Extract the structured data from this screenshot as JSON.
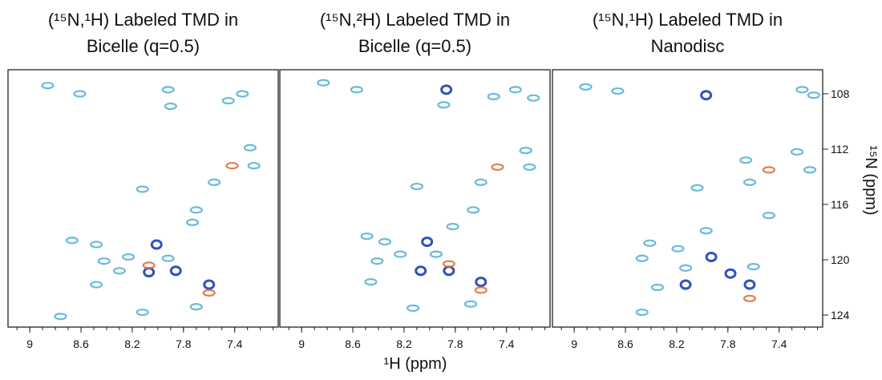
{
  "chart_data": [
    {
      "type": "scatter",
      "title": [
        "(¹⁵N,¹H) Labeled TMD in",
        "Bicelle (q=0.5)"
      ],
      "xlim": [
        9.17,
        7.06
      ],
      "ylim": [
        106.26,
        124.87
      ],
      "xticks": [
        9.0,
        8.6,
        8.2,
        7.8,
        7.4
      ],
      "series": [
        {
          "color": "#5ab4d6",
          "x": [
            8.86,
            8.61,
            7.92,
            7.9,
            7.34,
            7.45,
            7.28,
            7.25,
            7.56,
            8.12,
            7.7,
            7.73,
            8.67,
            8.48,
            8.42,
            8.23,
            7.92,
            8.3,
            8.48,
            7.7,
            8.12,
            8.76
          ],
          "values": [
            107.4,
            108.0,
            107.7,
            108.9,
            108.0,
            108.5,
            111.9,
            113.2,
            114.4,
            114.9,
            116.4,
            117.3,
            118.6,
            118.9,
            120.1,
            119.8,
            119.9,
            120.8,
            121.8,
            123.4,
            123.8,
            124.1
          ]
        },
        {
          "color": "#1c3fb5",
          "x": [
            8.01,
            8.07,
            7.86,
            7.6
          ],
          "values": [
            118.9,
            120.9,
            120.8,
            121.8
          ]
        },
        {
          "color": "#e0703a",
          "x": [
            7.42,
            7.6,
            8.07
          ],
          "values": [
            113.2,
            122.4,
            120.4
          ]
        }
      ]
    },
    {
      "type": "scatter",
      "title": [
        "(¹⁵N,²H) Labeled TMD in",
        "Bicelle (q=0.5)"
      ],
      "xlim": [
        9.17,
        7.06
      ],
      "ylim": [
        106.26,
        124.87
      ],
      "xticks": [
        9.0,
        8.6,
        8.2,
        7.8,
        7.4
      ],
      "series": [
        {
          "color": "#5ab4d6",
          "x": [
            8.83,
            8.57,
            7.89,
            7.5,
            7.33,
            7.19,
            7.25,
            7.22,
            7.6,
            8.1,
            7.66,
            7.82,
            8.49,
            8.35,
            8.23,
            7.95,
            8.41,
            8.46,
            7.68,
            8.13
          ],
          "values": [
            107.2,
            107.7,
            108.8,
            108.2,
            107.7,
            108.3,
            112.1,
            113.3,
            114.4,
            114.7,
            116.4,
            117.6,
            118.3,
            118.7,
            119.6,
            119.6,
            120.1,
            121.6,
            123.2,
            123.5
          ]
        },
        {
          "color": "#1c3fb5",
          "x": [
            7.87,
            8.02,
            8.07,
            7.85,
            7.6
          ],
          "values": [
            107.7,
            118.7,
            120.8,
            120.8,
            121.6
          ]
        },
        {
          "color": "#e0703a",
          "x": [
            7.47,
            7.6,
            7.85
          ],
          "values": [
            113.3,
            122.2,
            120.3
          ]
        }
      ]
    },
    {
      "type": "scatter",
      "title": [
        "(¹⁵N,¹H) Labeled TMD in",
        "Nanodisc"
      ],
      "xlim": [
        9.17,
        7.06
      ],
      "ylim": [
        106.26,
        124.87
      ],
      "xticks": [
        9.0,
        8.6,
        8.2,
        7.8,
        7.4
      ],
      "yticks": [
        108,
        112,
        116,
        120,
        124
      ],
      "series": [
        {
          "color": "#5ab4d6",
          "x": [
            8.91,
            8.66,
            7.22,
            7.13,
            7.26,
            7.16,
            7.66,
            7.63,
            8.04,
            7.48,
            7.97,
            8.41,
            8.19,
            8.47,
            8.13,
            8.35,
            7.6,
            8.47
          ],
          "values": [
            107.5,
            107.8,
            107.7,
            108.1,
            112.2,
            113.5,
            112.8,
            114.4,
            114.8,
            116.8,
            117.9,
            118.8,
            119.2,
            119.9,
            120.6,
            122.0,
            120.5,
            123.8
          ]
        },
        {
          "color": "#1c3fb5",
          "x": [
            7.97,
            7.93,
            7.78,
            8.13,
            7.63
          ],
          "values": [
            108.1,
            119.8,
            121.0,
            121.8,
            121.8
          ]
        },
        {
          "color": "#e0703a",
          "x": [
            7.48,
            7.63
          ],
          "values": [
            113.5,
            122.8
          ]
        }
      ]
    }
  ],
  "x_label": "¹H (ppm)",
  "y_label": "¹⁵N (ppm)"
}
